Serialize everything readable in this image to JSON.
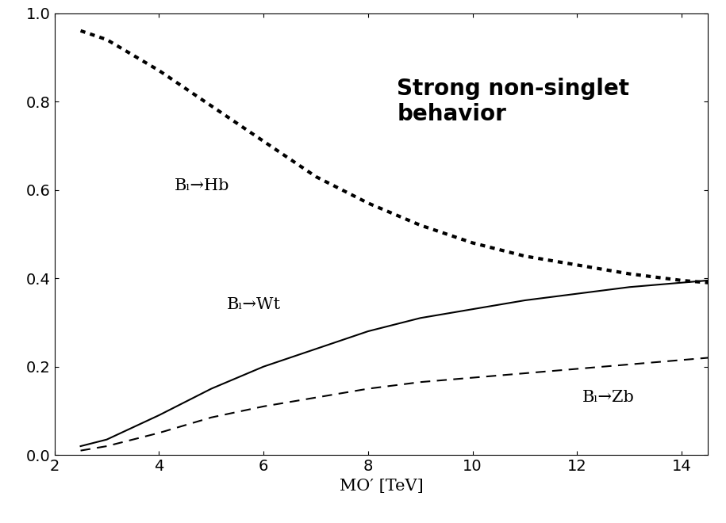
{
  "chart_data": {
    "type": "line",
    "annotations": [
      "Strong non-singlet behavior"
    ],
    "x_label": "MO′ [TeV]",
    "x": [
      2.5,
      3,
      4,
      5,
      6,
      7,
      8,
      9,
      10,
      11,
      12,
      13,
      14,
      14.5
    ],
    "series": [
      {
        "name": "Bₗ→Hb",
        "color": "#000000",
        "line_style": "dotted",
        "values": [
          0.96,
          0.94,
          0.87,
          0.79,
          0.71,
          0.63,
          0.57,
          0.52,
          0.48,
          0.45,
          0.43,
          0.41,
          0.395,
          0.39
        ]
      },
      {
        "name": "Bₗ→Wt",
        "color": "#000000",
        "line_style": "solid",
        "values": [
          0.02,
          0.035,
          0.09,
          0.15,
          0.2,
          0.24,
          0.28,
          0.31,
          0.33,
          0.35,
          0.365,
          0.38,
          0.39,
          0.395
        ]
      },
      {
        "name": "Bₗ→Zb",
        "color": "#000000",
        "line_style": "dashed",
        "values": [
          0.01,
          0.02,
          0.05,
          0.085,
          0.11,
          0.13,
          0.15,
          0.165,
          0.175,
          0.185,
          0.195,
          0.205,
          0.215,
          0.22
        ]
      }
    ],
    "xlim": [
      2,
      14.5
    ],
    "xticks": [
      2,
      4,
      6,
      8,
      10,
      12,
      14
    ],
    "ylim": [
      0.0,
      1.0
    ],
    "yticks": [
      0.0,
      0.2,
      0.4,
      0.6,
      0.8,
      1.0
    ],
    "grid": false
  }
}
